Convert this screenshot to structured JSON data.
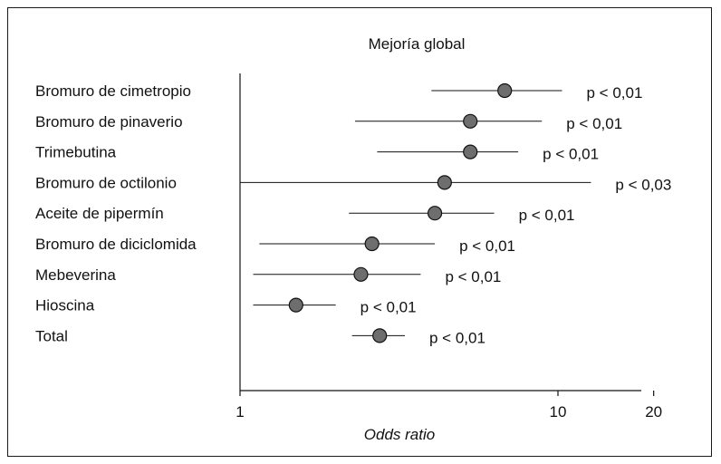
{
  "chart_data": {
    "type": "forest",
    "title": "Mejoría global",
    "xlabel": "Odds ratio",
    "xscale": "log",
    "xlim": [
      1,
      20
    ],
    "xticks": [
      {
        "value": 1,
        "label": "1"
      },
      {
        "value": 10,
        "label": "10"
      },
      {
        "value": 20,
        "label": "20"
      }
    ],
    "grid": false,
    "marker_color": "#6e6e6e",
    "rows": [
      {
        "label": "Bromuro de cimetropio",
        "or": 6.8,
        "lower": 4.0,
        "upper": 10.3,
        "p": "p < 0,01"
      },
      {
        "label": "Bromuro de pinaverio",
        "or": 5.3,
        "lower": 2.3,
        "upper": 8.9,
        "p": "p < 0,01"
      },
      {
        "label": "Trimebutina",
        "or": 5.3,
        "lower": 2.7,
        "upper": 7.5,
        "p": "p < 0,01"
      },
      {
        "label": "Bromuro de octilonio",
        "or": 4.4,
        "lower": 1.0,
        "upper": 12.7,
        "p": "p < 0,03"
      },
      {
        "label": "Aceite de pipermín",
        "or": 4.1,
        "lower": 2.2,
        "upper": 6.3,
        "p": "p < 0,01"
      },
      {
        "label": "Bromuro de diciclomida",
        "or": 2.6,
        "lower": 1.15,
        "upper": 4.1,
        "p": "p < 0,01"
      },
      {
        "label": "Mebeverina",
        "or": 2.4,
        "lower": 1.1,
        "upper": 3.7,
        "p": "p < 0,01"
      },
      {
        "label": "Hioscina",
        "or": 1.5,
        "lower": 1.1,
        "upper": 2.0,
        "p": "p < 0,01"
      },
      {
        "label": "Total",
        "or": 2.75,
        "lower": 2.25,
        "upper": 3.3,
        "p": "p < 0,01"
      }
    ]
  }
}
